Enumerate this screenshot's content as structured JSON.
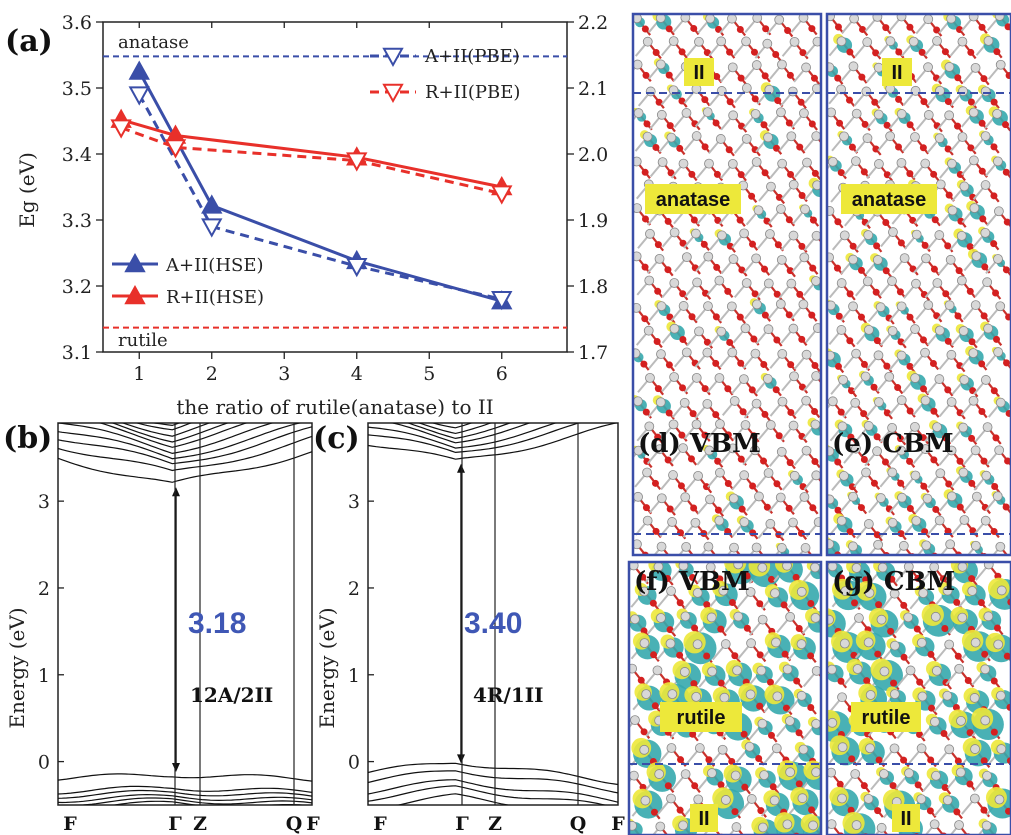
{
  "colors": {
    "anatase": "#3a4ea8",
    "rutile": "#e8302a",
    "gap_text": "#3f57b5",
    "iso_yellow": "#ede83a",
    "iso_cyan": "#35a9ad",
    "panel_border": "#3a4ea8"
  },
  "chart_data": [
    {
      "panel": "(a)",
      "type": "line",
      "xlabel": "the ratio of rutile(anatase) to II",
      "ylabel": "Eg (eV)",
      "xlim": [
        0.5,
        6.9
      ],
      "ylim": [
        3.1,
        3.6
      ],
      "ylim_right": [
        1.7,
        2.2
      ],
      "x_ticks": [
        "1",
        "2",
        "3",
        "4",
        "5",
        "6"
      ],
      "y_ticks": [
        "3.1",
        "3.2",
        "3.3",
        "3.4",
        "3.5",
        "3.6"
      ],
      "y_ticks_right": [
        "1.7",
        "1.8",
        "1.9",
        "2.0",
        "2.1",
        "2.2"
      ],
      "reference_lines": [
        {
          "label": "anatase",
          "y": 3.548,
          "color": "#3a4ea8"
        },
        {
          "label": "rutile",
          "y": 3.137,
          "color": "#e8302a"
        }
      ],
      "series": [
        {
          "name": "A+II(HSE)",
          "axis": "left",
          "style": "solid",
          "marker": "triangle-up-filled",
          "color": "#3a4ea8",
          "x": [
            1,
            2,
            4,
            6
          ],
          "y": [
            3.525,
            3.322,
            3.238,
            3.177
          ]
        },
        {
          "name": "R+II(HSE)",
          "axis": "left",
          "style": "solid",
          "marker": "triangle-up-filled",
          "color": "#e8302a",
          "x": [
            0.75,
            1.5,
            4,
            6
          ],
          "y": [
            3.452,
            3.428,
            3.395,
            3.35
          ]
        },
        {
          "name": "A+II(PBE)",
          "axis": "right",
          "style": "dashed",
          "marker": "triangle-down-open",
          "color": "#3a4ea8",
          "x": [
            1,
            2,
            4,
            6
          ],
          "y": [
            2.09,
            1.89,
            1.83,
            1.78
          ]
        },
        {
          "name": "R+II(PBE)",
          "axis": "right",
          "style": "dashed",
          "marker": "triangle-down-open",
          "color": "#e8302a",
          "x": [
            0.75,
            1.5,
            4,
            6
          ],
          "y": [
            2.04,
            2.01,
            1.99,
            1.94
          ]
        }
      ],
      "legend": [
        "top-right",
        "bottom-left"
      ]
    },
    {
      "panel": "(b)",
      "type": "line",
      "ylabel": "Energy (eV)",
      "ylim": [
        -0.5,
        3.9
      ],
      "y_ticks": [
        "0",
        "1",
        "2",
        "3"
      ],
      "kpoints": [
        "F",
        "Γ",
        "Z",
        "Q",
        "F"
      ],
      "band_gap": "3.18",
      "structure": "12A/2II"
    },
    {
      "panel": "(c)",
      "type": "line",
      "ylabel": "Energy (eV)",
      "ylim": [
        -0.5,
        3.9
      ],
      "y_ticks": [
        "0",
        "1",
        "2",
        "3"
      ],
      "kpoints": [
        "F",
        "Γ",
        "Z",
        "Q",
        "F"
      ],
      "band_gap": "3.40",
      "structure": "4R/1II"
    }
  ],
  "images": [
    {
      "panel": "(d) VBM",
      "top_label": "II",
      "middle_label": "anatase"
    },
    {
      "panel": "(e) CBM",
      "top_label": "II",
      "middle_label": "anatase"
    },
    {
      "panel": "(f) VBM",
      "middle_label": "rutile",
      "bottom_label": "II"
    },
    {
      "panel": "(g) CBM",
      "middle_label": "rutile",
      "bottom_label": "II"
    }
  ]
}
